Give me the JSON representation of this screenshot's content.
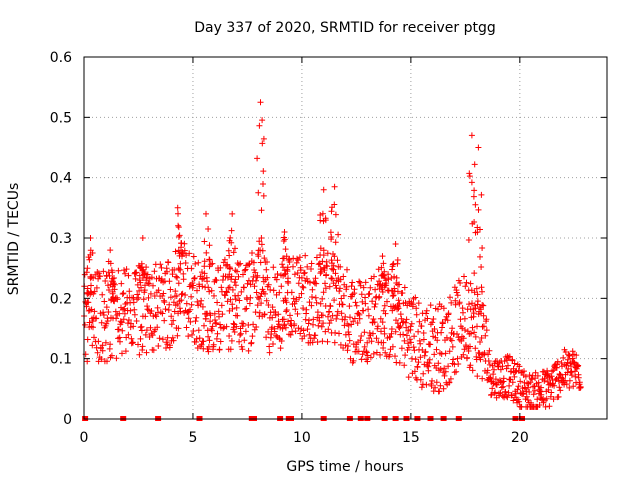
{
  "chart_data": {
    "type": "scatter",
    "title": "Day 337 of 2020, SRMTID for receiver ptgg",
    "xlabel": "GPS time / hours",
    "ylabel": "SRMTID / TECUs",
    "xlim": [
      0,
      24
    ],
    "ylim": [
      0,
      0.6
    ],
    "xticks": [
      0,
      5,
      10,
      15,
      20
    ],
    "xtick_labels": [
      "0",
      "5",
      "10",
      "15",
      "20"
    ],
    "yticks": [
      0,
      0.1,
      0.2,
      0.3,
      0.4,
      0.5,
      0.6
    ],
    "ytick_labels": [
      "0",
      "0.1",
      "0.2",
      "0.3",
      "0.4",
      "0.5",
      "0.6"
    ],
    "grid": true,
    "marker": "+",
    "color": "#ff0000",
    "series": [
      {
        "name": "SRMTID",
        "profile": [
          {
            "x": 0.0,
            "y": 0.17
          },
          {
            "x": 1.0,
            "y": 0.17
          },
          {
            "x": 2.0,
            "y": 0.18
          },
          {
            "x": 3.0,
            "y": 0.18
          },
          {
            "x": 4.0,
            "y": 0.19
          },
          {
            "x": 4.5,
            "y": 0.22
          },
          {
            "x": 5.5,
            "y": 0.18
          },
          {
            "x": 6.5,
            "y": 0.19
          },
          {
            "x": 7.5,
            "y": 0.18
          },
          {
            "x": 8.1,
            "y": 0.25
          },
          {
            "x": 8.5,
            "y": 0.18
          },
          {
            "x": 9.5,
            "y": 0.2
          },
          {
            "x": 10.5,
            "y": 0.2
          },
          {
            "x": 11.5,
            "y": 0.2
          },
          {
            "x": 12.5,
            "y": 0.16
          },
          {
            "x": 13.5,
            "y": 0.18
          },
          {
            "x": 14.5,
            "y": 0.16
          },
          {
            "x": 15.5,
            "y": 0.12
          },
          {
            "x": 16.5,
            "y": 0.12
          },
          {
            "x": 17.5,
            "y": 0.17
          },
          {
            "x": 18.3,
            "y": 0.13
          },
          {
            "x": 18.7,
            "y": 0.07
          },
          {
            "x": 19.5,
            "y": 0.07
          },
          {
            "x": 20.5,
            "y": 0.04
          },
          {
            "x": 21.3,
            "y": 0.05
          },
          {
            "x": 22.0,
            "y": 0.08
          },
          {
            "x": 22.8,
            "y": 0.08
          }
        ],
        "peaks": [
          {
            "x": 0.3,
            "y": 0.3
          },
          {
            "x": 1.2,
            "y": 0.28
          },
          {
            "x": 2.7,
            "y": 0.3
          },
          {
            "x": 4.3,
            "y": 0.35
          },
          {
            "x": 5.6,
            "y": 0.34
          },
          {
            "x": 6.8,
            "y": 0.34
          },
          {
            "x": 8.1,
            "y": 0.525
          },
          {
            "x": 9.2,
            "y": 0.31
          },
          {
            "x": 11.0,
            "y": 0.38
          },
          {
            "x": 11.5,
            "y": 0.385
          },
          {
            "x": 13.7,
            "y": 0.27
          },
          {
            "x": 14.3,
            "y": 0.29
          },
          {
            "x": 17.8,
            "y": 0.47
          },
          {
            "x": 18.1,
            "y": 0.45
          }
        ],
        "zero_markers_x": [
          0.05,
          1.8,
          3.4,
          5.3,
          7.7,
          7.8,
          9.0,
          9.4,
          9.5,
          11.0,
          12.2,
          12.7,
          13.0,
          13.8,
          14.3,
          14.8,
          15.3,
          15.9,
          16.5,
          17.2,
          19.8,
          20.1
        ]
      }
    ]
  }
}
